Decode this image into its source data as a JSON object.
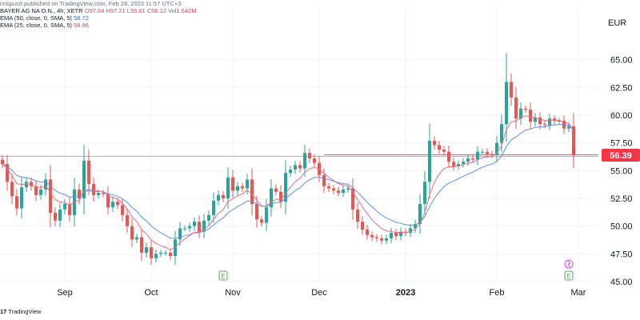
{
  "header": {
    "publisher_line": "crispus9 published on TradingView.com, Feb 28, 2023 11:57 UTC+3",
    "symbol": "BAYER AG NA O.N., 4h, XETR",
    "o_label": "O",
    "o_value": "57.04",
    "h_label": "H",
    "h_value": "57.21",
    "l_label": "L",
    "l_value": "55.61",
    "c_label": "C",
    "c_value": "56.12",
    "vol_label": "Vol",
    "vol_value": "1.642M",
    "ema50_label": "EMA (50, close, 0, SMA, 5)",
    "ema50_value": "58.72",
    "ema25_label": "EMA (25, close, 0, SMA, 5)",
    "ema25_value": "58.96"
  },
  "footer": {
    "logo_text": "TradingView",
    "logo_mark": "17"
  },
  "currency": "EUR",
  "colors": {
    "up": "#26a69a",
    "down": "#ef5350",
    "ema50": "#5b8def",
    "ema25": "#f06a7a",
    "price_label": "#f23645",
    "grid": "#f0f3fa"
  },
  "events": [
    {
      "label": "E",
      "date": "Nov 10"
    },
    {
      "label": "E",
      "date": "Feb 28"
    }
  ],
  "chart_data": {
    "type": "candlestick",
    "title": "BAYER AG NA O.N., 4h, XETR",
    "ylabel": "EUR",
    "ylim": [
      45,
      67.5
    ],
    "yticks": [
      45.0,
      47.5,
      50.0,
      52.5,
      55.0,
      57.5,
      60.0,
      62.5,
      65.0
    ],
    "ytick_labels": [
      "45.00",
      "47.50",
      "50.00",
      "52.50",
      "55.00",
      "57.50",
      "60.00",
      "62.50",
      "65.00"
    ],
    "xticks": [
      {
        "label": "Sep",
        "index": 13
      },
      {
        "label": "Oct",
        "index": 31
      },
      {
        "label": "Nov",
        "index": 48
      },
      {
        "label": "Dec",
        "index": 66
      },
      {
        "label": "2023",
        "index": 84
      },
      {
        "label": "Feb",
        "index": 103
      },
      {
        "label": "Mar",
        "index": 120
      }
    ],
    "last_price": 56.39,
    "last_price_label": "56.39",
    "horizontal_line": 56.3,
    "closes": [
      55.6,
      54.0,
      52.7,
      51.6,
      53.5,
      54.0,
      53.6,
      52.8,
      53.3,
      54.2,
      51.2,
      50.5,
      51.5,
      52.0,
      51.0,
      53.3,
      52.5,
      55.9,
      53.8,
      52.8,
      53.0,
      52.9,
      51.7,
      52.2,
      51.9,
      51.0,
      50.0,
      48.8,
      49.0,
      47.6,
      48.1,
      47.1,
      47.5,
      47.6,
      47.6,
      47.3,
      48.8,
      49.8,
      49.8,
      50.0,
      50.4,
      49.5,
      50.5,
      51.0,
      52.3,
      52.8,
      52.5,
      54.4,
      53.2,
      53.6,
      53.4,
      54.2,
      52.0,
      50.6,
      50.3,
      51.7,
      53.4,
      53.1,
      52.2,
      54.8,
      55.1,
      55.5,
      55.2,
      56.6,
      56.1,
      55.7,
      54.6,
      53.6,
      53.4,
      53.2,
      53.0,
      53.3,
      53.4,
      51.5,
      50.4,
      49.7,
      49.2,
      49.0,
      48.9,
      48.7,
      48.9,
      49.4,
      49.1,
      49.5,
      49.4,
      49.8,
      50.2,
      52.0,
      54.0,
      57.7,
      57.3,
      56.9,
      56.7,
      55.8,
      55.4,
      55.6,
      55.8,
      56.1,
      56.0,
      56.7,
      56.7,
      56.5,
      56.4,
      57.5,
      59.2,
      63.0,
      61.6,
      59.7,
      60.6,
      60.5,
      59.4,
      59.8,
      59.2,
      59.1,
      59.7,
      59.5,
      59.5,
      58.8,
      59.0,
      56.4
    ],
    "series": [
      {
        "name": "EMA (50, close, 0, SMA, 5)",
        "color": "#5b8def"
      },
      {
        "name": "EMA (25, close, 0, SMA, 5)",
        "color": "#f06a7a"
      }
    ]
  }
}
